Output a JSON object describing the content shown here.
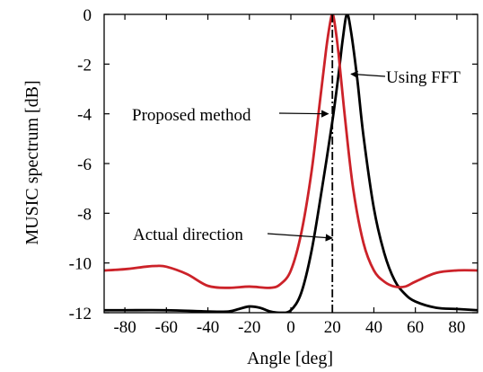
{
  "chart_data": {
    "type": "line",
    "xlabel": "Angle [deg]",
    "ylabel": "MUSIC spectrum [dB]",
    "xlim": [
      -90,
      90
    ],
    "ylim": [
      -12,
      0
    ],
    "xticks": [
      -80,
      -60,
      -40,
      -20,
      0,
      20,
      40,
      60,
      80
    ],
    "yticks": [
      0,
      -2,
      -4,
      -6,
      -8,
      -10,
      -12
    ],
    "grid": false,
    "series": [
      {
        "label": "Proposed method",
        "color": "#cc2229",
        "x": [
          -90,
          -80,
          -70,
          -65,
          -60,
          -50,
          -40,
          -30,
          -20,
          -10,
          -5,
          0,
          5,
          10,
          14,
          17,
          19,
          20,
          21,
          23,
          26,
          30,
          35,
          40,
          45,
          50,
          55,
          60,
          70,
          80,
          90
        ],
        "y": [
          -10.3,
          -10.25,
          -10.15,
          -10.12,
          -10.15,
          -10.45,
          -10.92,
          -11.0,
          -10.95,
          -11.0,
          -10.85,
          -10.3,
          -8.8,
          -6.3,
          -3.5,
          -1.4,
          -0.3,
          0,
          -0.3,
          -1.6,
          -4.1,
          -7.0,
          -9.2,
          -10.3,
          -10.75,
          -10.95,
          -10.95,
          -10.75,
          -10.4,
          -10.3,
          -10.3
        ]
      },
      {
        "label": "Using FFT",
        "color": "#000000",
        "x": [
          -90,
          -80,
          -60,
          -40,
          -30,
          -25,
          -20,
          -15,
          -10,
          -5,
          0,
          5,
          10,
          15,
          20,
          23,
          25,
          27,
          29,
          32,
          35,
          40,
          45,
          50,
          55,
          60,
          70,
          80,
          90
        ],
        "y": [
          -11.9,
          -11.9,
          -11.9,
          -11.95,
          -11.95,
          -11.85,
          -11.75,
          -11.8,
          -11.95,
          -12.0,
          -11.9,
          -11.2,
          -9.5,
          -7.0,
          -4.3,
          -2.4,
          -1.0,
          0,
          -0.7,
          -2.6,
          -4.9,
          -7.8,
          -9.6,
          -10.7,
          -11.25,
          -11.55,
          -11.8,
          -11.85,
          -11.9
        ]
      }
    ],
    "vline": {
      "x": 20,
      "style": "dash-dot",
      "label": "Actual direction"
    },
    "annotations": [
      {
        "text": "Proposed method",
        "target": [
          18,
          -4.0
        ]
      },
      {
        "text": "Using FFT",
        "target": [
          29,
          -2.4
        ]
      },
      {
        "text": "Actual direction",
        "target": [
          20,
          -9.0
        ]
      }
    ]
  }
}
